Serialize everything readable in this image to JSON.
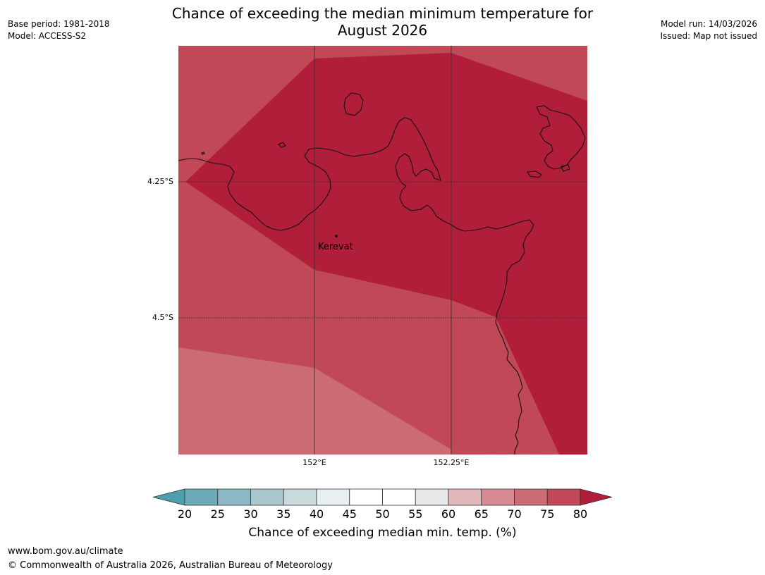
{
  "header": {
    "title_line1": "Chance of exceeding the median minimum temperature for",
    "title_line2": "August 2026",
    "base_period": "Base period: 1981-2018",
    "model": "Model: ACCESS-S2",
    "model_run": "Model run: 14/03/2026",
    "issued": "Issued: Map not issued"
  },
  "map": {
    "lat_labels": [
      "4.25°S",
      "4.5°S"
    ],
    "lon_labels": [
      "152°E",
      "152.25°E"
    ],
    "place": {
      "name": "Kerevat"
    },
    "colors": {
      "c_70_75": "#cb6b74",
      "c_75_80": "#c04857",
      "c_80_plus": "#b11e3a",
      "coastline": "#111111"
    }
  },
  "colorbar": {
    "ticks": [
      "20",
      "25",
      "30",
      "35",
      "40",
      "45",
      "50",
      "55",
      "60",
      "65",
      "70",
      "75",
      "80"
    ],
    "low_arrow_color": "#4d9fae",
    "segment_colors": [
      "#6babb9",
      "#8cb7c4",
      "#a9c6cc",
      "#c9dadd",
      "#e8f0f2",
      "#ffffff",
      "#ffffff",
      "#e7e7e7",
      "#e2b7bb",
      "#d68b94",
      "#cb6b74",
      "#c04857"
    ],
    "high_arrow_color": "#b11e3a",
    "label": "Chance of exceeding median min. temp. (%)"
  },
  "footer": {
    "url": "www.bom.gov.au/climate",
    "copyright": "© Commonwealth of Australia 2026, Australian Bureau of Meteorology"
  }
}
